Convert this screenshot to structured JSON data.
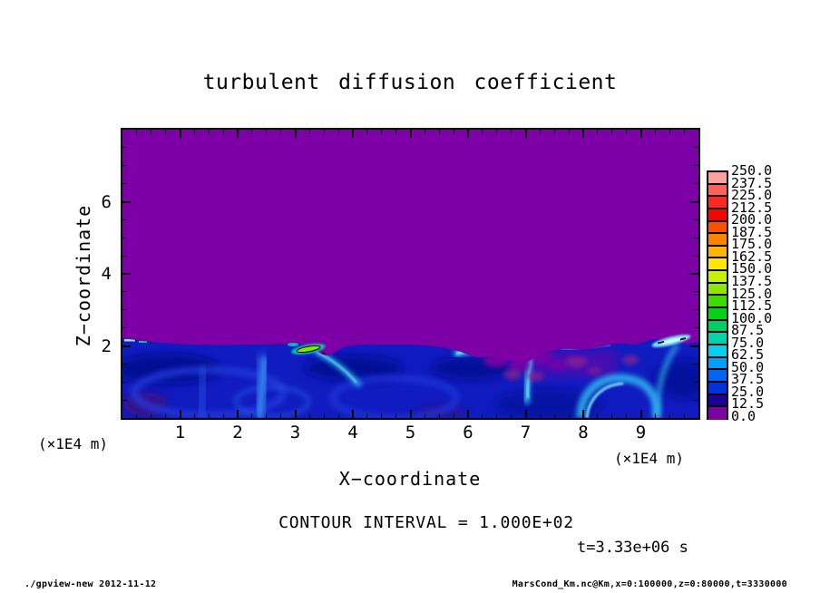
{
  "header": {
    "title": "turbulent diffusion coefficient"
  },
  "chart_data": {
    "type": "heatmap",
    "title": "turbulent diffusion coefficient",
    "xlabel": "X−coordinate",
    "ylabel": "Z−coordinate",
    "x_unit_label_left": "(×1E4 m)",
    "x_unit_label_right": "(×1E4 m)",
    "x_range": [
      0,
      10
    ],
    "z_range": [
      0,
      8
    ],
    "x_major_ticks": [
      1,
      2,
      3,
      4,
      5,
      6,
      7,
      8,
      9
    ],
    "x_minor_step": 0.25,
    "z_major_ticks": [
      2,
      4,
      6
    ],
    "z_minor_step": 0.5,
    "contour_interval_label": "CONTOUR INTERVAL = 1.000E+02",
    "contour_interval": "1.000E+02",
    "time_label": "t=3.33e+06 s",
    "colorbar": {
      "labels_top_to_bottom": [
        "250.0",
        "237.5",
        "225.0",
        "212.5",
        "200.0",
        "187.5",
        "175.0",
        "162.5",
        "150.0",
        "137.5",
        "125.0",
        "112.5",
        "100.0",
        "87.5",
        "75.0",
        "62.5",
        "50.0",
        "37.5",
        "25.0",
        "12.5",
        "0.0"
      ],
      "colors_top_to_bottom": [
        "#FFA0A0",
        "#FF6058",
        "#FF2820",
        "#F20800",
        "#FF5000",
        "#FF8200",
        "#FFB400",
        "#FFE600",
        "#C8F000",
        "#8CE800",
        "#3CDC00",
        "#00D216",
        "#00CD64",
        "#00D4AE",
        "#00D2F0",
        "#00A0FA",
        "#0064F5",
        "#0032DC",
        "#1C0098",
        "#7C00A6"
      ]
    },
    "field_summary": "Diffusion coefficient near 0 (purple, 0-12.5 band) everywhere above z~2e4 m; turbulent boundary layer below z~2 with values mostly 12.5-100 (dark blue to cyan eddies and filaments), occasional purple intrusions near x=6-8, and isolated filaments exceeding 100 (green, outlined by the 1.000E+02 contour) near x~3.2 and x~9.3.",
    "palette": {
      "field_purple": "#7C00A6",
      "rose": "#8E2390",
      "maroon": "#44107A",
      "layer_base": "#101CC0",
      "navy_dark": "#06088E",
      "eddy_mid": "#2038D8",
      "pale_blue": "#2E62E8",
      "pale_core": "#38A0F0",
      "cyan": "#2FB4EE",
      "cyan_bright": "#7FEDF8",
      "cyan_core": "#C8FCFC",
      "teal": "#00D6B2",
      "green": "#86E800",
      "black": "#000000"
    }
  },
  "footer": {
    "left": "./gpview-new  2012-11-12",
    "right": "MarsCond_Km.nc@Km,x=0:100000,z=0:80000,t=3330000"
  }
}
